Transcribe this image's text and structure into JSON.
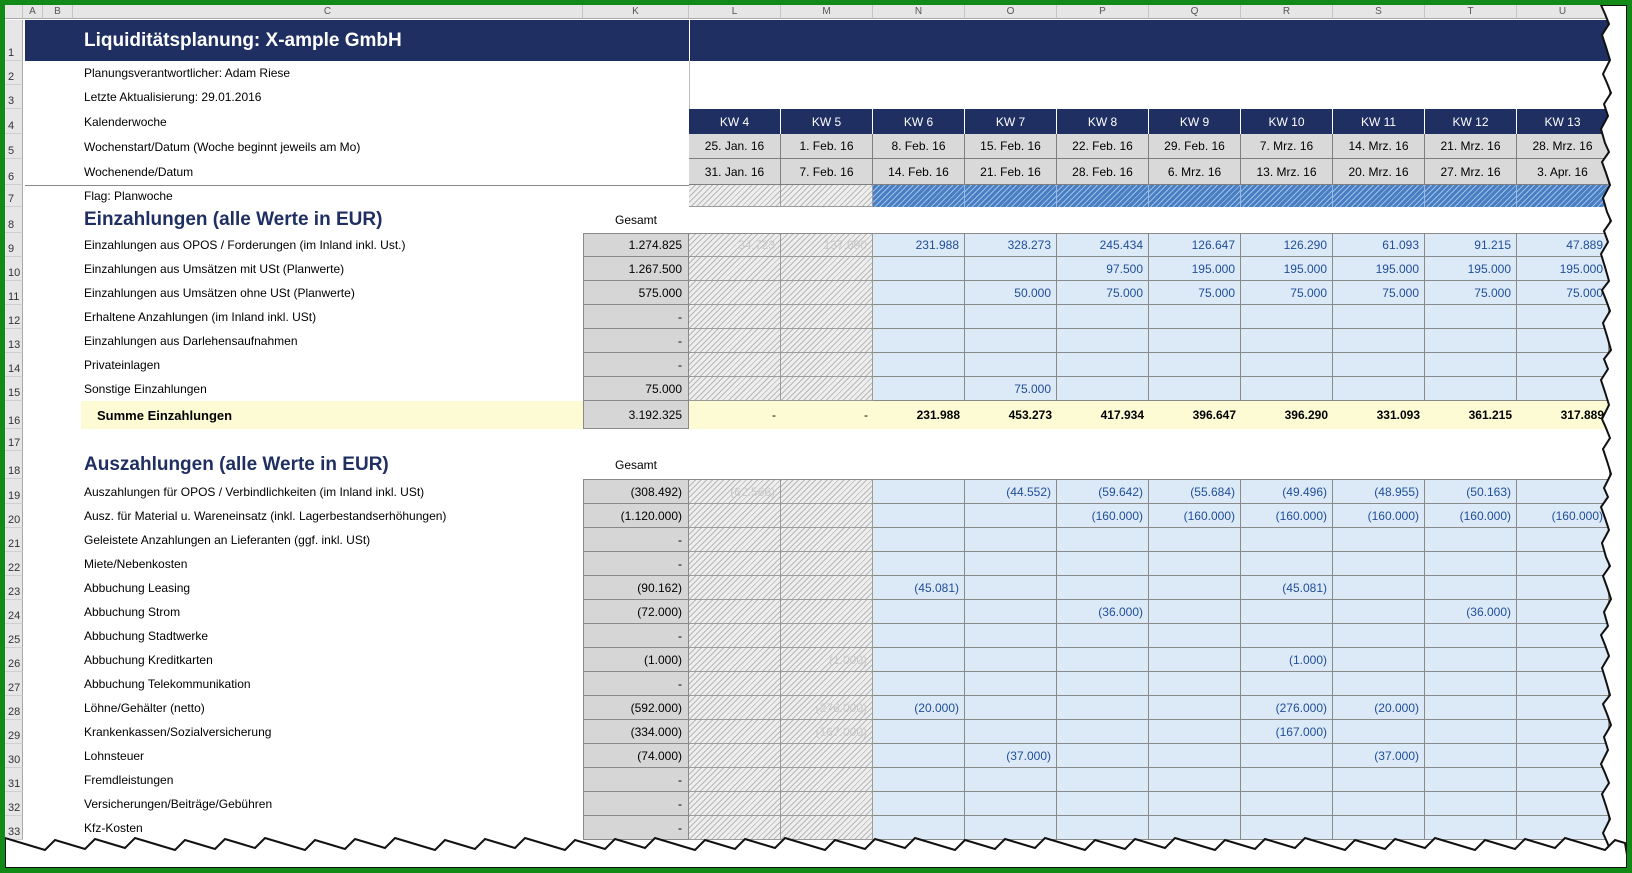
{
  "column_headers": [
    "A",
    "B",
    "C",
    "K",
    "L",
    "M",
    "N",
    "O",
    "P",
    "Q",
    "R",
    "S",
    "T",
    "U"
  ],
  "title": "Liquiditätsplanung: X-ample GmbH",
  "info": {
    "responsible": "Planungsverantwortlicher: Adam Riese",
    "updated": "Letzte Aktualisierung: 29.01.2016",
    "kw_label": "Kalenderwoche",
    "start_label": "Wochenstart/Datum  (Woche beginnt jeweils am Mo)",
    "end_label": "Wochenende/Datum",
    "flag_label": "Flag: Planwoche"
  },
  "weeks": [
    {
      "kw": "KW 4",
      "start": "25. Jan. 16",
      "end": "31. Jan. 16",
      "state": "past"
    },
    {
      "kw": "KW 5",
      "start": "1. Feb. 16",
      "end": "7. Feb. 16",
      "state": "past"
    },
    {
      "kw": "KW 6",
      "start": "8. Feb. 16",
      "end": "14. Feb. 16",
      "state": "plan"
    },
    {
      "kw": "KW 7",
      "start": "15. Feb. 16",
      "end": "21. Feb. 16",
      "state": "plan"
    },
    {
      "kw": "KW 8",
      "start": "22. Feb. 16",
      "end": "28. Feb. 16",
      "state": "plan"
    },
    {
      "kw": "KW 9",
      "start": "29. Feb. 16",
      "end": "6. Mrz. 16",
      "state": "plan"
    },
    {
      "kw": "KW 10",
      "start": "7. Mrz. 16",
      "end": "13. Mrz. 16",
      "state": "plan"
    },
    {
      "kw": "KW 11",
      "start": "14. Mrz. 16",
      "end": "20. Mrz. 16",
      "state": "plan"
    },
    {
      "kw": "KW 12",
      "start": "21. Mrz. 16",
      "end": "27. Mrz. 16",
      "state": "plan"
    },
    {
      "kw": "KW 13",
      "start": "28. Mrz. 16",
      "end": "3. Apr. 16",
      "state": "plan"
    }
  ],
  "einzahlungen": {
    "title": "Einzahlungen (alle Werte in EUR)",
    "gesamt_label": "Gesamt",
    "rows": [
      {
        "label": "Einzahlungen aus OPOS / Forderungen (im Inland inkl. Ust.)",
        "total": "1.274.825",
        "values": [
          "34.723",
          "137.090",
          "231.988",
          "328.273",
          "245.434",
          "126.647",
          "126.290",
          "61.093",
          "91.215",
          "47.889"
        ]
      },
      {
        "label": "Einzahlungen aus Umsätzen mit USt (Planwerte)",
        "total": "1.267.500",
        "values": [
          "",
          "",
          "",
          "",
          "97.500",
          "195.000",
          "195.000",
          "195.000",
          "195.000",
          "195.000"
        ]
      },
      {
        "label": "Einzahlungen aus Umsätzen ohne USt (Planwerte)",
        "total": "575.000",
        "values": [
          "",
          "",
          "",
          "50.000",
          "75.000",
          "75.000",
          "75.000",
          "75.000",
          "75.000",
          "75.000"
        ]
      },
      {
        "label": "Erhaltene Anzahlungen (im Inland inkl. USt)",
        "total": "-",
        "values": [
          "",
          "",
          "",
          "",
          "",
          "",
          "",
          "",
          "",
          ""
        ]
      },
      {
        "label": "Einzahlungen aus Darlehensaufnahmen",
        "total": "-",
        "values": [
          "",
          "",
          "",
          "",
          "",
          "",
          "",
          "",
          "",
          ""
        ]
      },
      {
        "label": "Privateinlagen",
        "total": "-",
        "values": [
          "",
          "",
          "",
          "",
          "",
          "",
          "",
          "",
          "",
          ""
        ]
      },
      {
        "label": "Sonstige Einzahlungen",
        "total": "75.000",
        "values": [
          "",
          "",
          "",
          "75.000",
          "",
          "",
          "",
          "",
          "",
          ""
        ]
      }
    ],
    "sum": {
      "label": "Summe Einzahlungen",
      "total": "3.192.325",
      "values": [
        "-",
        "-",
        "231.988",
        "453.273",
        "417.934",
        "396.647",
        "396.290",
        "331.093",
        "361.215",
        "317.889"
      ]
    }
  },
  "auszahlungen": {
    "title": "Auszahlungen (alle Werte in EUR)",
    "gesamt_label": "Gesamt",
    "rows": [
      {
        "label": "Auszahlungen für OPOS / Verbindlichkeiten (im Inland inkl. USt)",
        "total": "(308.492)",
        "values": [
          "(62.566)",
          "",
          "",
          "(44.552)",
          "(59.642)",
          "(55.684)",
          "(49.496)",
          "(48.955)",
          "(50.163)",
          ""
        ]
      },
      {
        "label": "Ausz. für Material u. Wareneinsatz (inkl. Lagerbestandserhöhungen)",
        "total": "(1.120.000)",
        "values": [
          "",
          "",
          "",
          "",
          "(160.000)",
          "(160.000)",
          "(160.000)",
          "(160.000)",
          "(160.000)",
          "(160.000)"
        ]
      },
      {
        "label": "Geleistete Anzahlungen an Lieferanten (ggf. inkl. USt)",
        "total": "-",
        "values": [
          "",
          "",
          "",
          "",
          "",
          "",
          "",
          "",
          "",
          ""
        ]
      },
      {
        "label": "Miete/Nebenkosten",
        "total": "-",
        "values": [
          "",
          "",
          "",
          "",
          "",
          "",
          "",
          "",
          "",
          ""
        ]
      },
      {
        "label": "Abbuchung Leasing",
        "total": "(90.162)",
        "values": [
          "",
          "",
          "(45.081)",
          "",
          "",
          "",
          "(45.081)",
          "",
          "",
          ""
        ]
      },
      {
        "label": "Abbuchung Strom",
        "total": "(72.000)",
        "values": [
          "",
          "",
          "",
          "",
          "(36.000)",
          "",
          "",
          "",
          "(36.000)",
          ""
        ]
      },
      {
        "label": "Abbuchung Stadtwerke",
        "total": "-",
        "values": [
          "",
          "",
          "",
          "",
          "",
          "",
          "",
          "",
          "",
          ""
        ]
      },
      {
        "label": "Abbuchung Kreditkarten",
        "total": "(1.000)",
        "values": [
          "",
          "(1.000)",
          "",
          "",
          "",
          "",
          "(1.000)",
          "",
          "",
          ""
        ]
      },
      {
        "label": "Abbuchung Telekommunikation",
        "total": "-",
        "values": [
          "",
          "",
          "",
          "",
          "",
          "",
          "",
          "",
          "",
          ""
        ]
      },
      {
        "label": "Löhne/Gehälter (netto)",
        "total": "(592.000)",
        "values": [
          "",
          "(276.000)",
          "(20.000)",
          "",
          "",
          "",
          "(276.000)",
          "(20.000)",
          "",
          ""
        ]
      },
      {
        "label": "Krankenkassen/Sozialversicherung",
        "total": "(334.000)",
        "values": [
          "",
          "(167.000)",
          "",
          "",
          "",
          "",
          "(167.000)",
          "",
          "",
          ""
        ]
      },
      {
        "label": "Lohnsteuer",
        "total": "(74.000)",
        "values": [
          "",
          "",
          "",
          "(37.000)",
          "",
          "",
          "",
          "(37.000)",
          "",
          ""
        ]
      },
      {
        "label": "Fremdleistungen",
        "total": "-",
        "values": [
          "",
          "",
          "",
          "",
          "",
          "",
          "",
          "",
          "",
          ""
        ]
      },
      {
        "label": "Versicherungen/Beiträge/Gebühren",
        "total": "-",
        "values": [
          "",
          "",
          "",
          "",
          "",
          "",
          "",
          "",
          "",
          ""
        ]
      },
      {
        "label": "Kfz-Kosten",
        "total": "-",
        "values": [
          "",
          "",
          "",
          "",
          "",
          "",
          "",
          "",
          "",
          ""
        ]
      }
    ]
  },
  "row_numbers": [
    "1",
    "2",
    "3",
    "4",
    "5",
    "6",
    "7",
    "8",
    "9",
    "10",
    "11",
    "12",
    "13",
    "14",
    "15",
    "16",
    "17",
    "18",
    "19",
    "20",
    "21",
    "22",
    "23",
    "24",
    "25",
    "26",
    "27",
    "28",
    "29",
    "30",
    "31",
    "32",
    "33"
  ],
  "colors": {
    "banner": "#1f2f62",
    "frame": "#118a18",
    "plan_fill": "#dce9f6",
    "value_text": "#1f4e99",
    "sum_fill": "#fdfbd3"
  }
}
